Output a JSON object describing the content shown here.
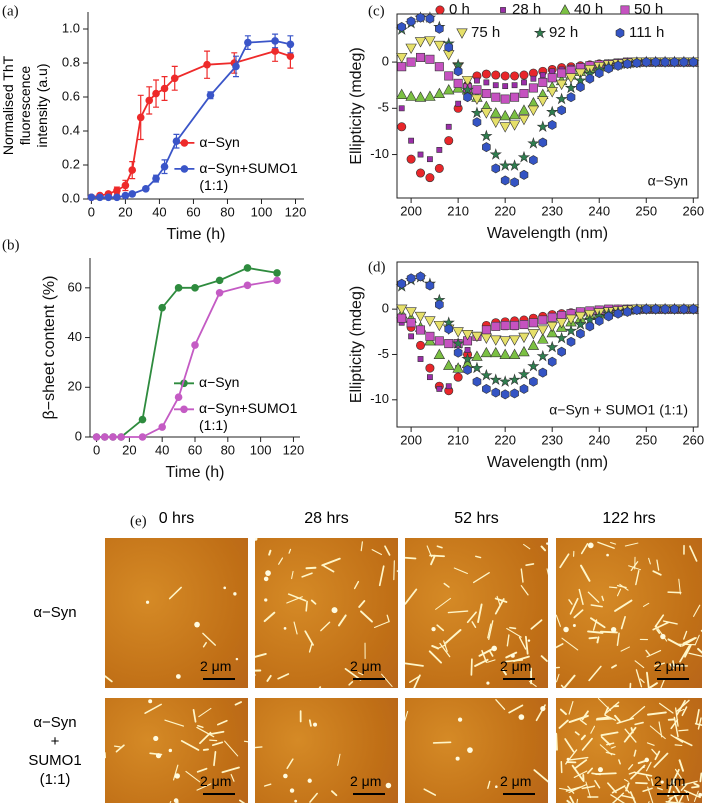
{
  "chart_data": [
    {
      "type": "line",
      "panel_label": "(a)",
      "xlabel": "Time (h)",
      "ylabel": "Normalised ThT\nfluorescence\nintensity (a.u)",
      "xlim": [
        -2,
        125
      ],
      "ylim": [
        0,
        1.1
      ],
      "xticks": [
        0,
        20,
        40,
        60,
        80,
        100,
        120
      ],
      "yticks": [
        {
          "value": 0,
          "label": "0.0"
        },
        0.2,
        0.4,
        0.6,
        0.8,
        {
          "value": 1,
          "label": "1.0"
        }
      ],
      "legend": "lower right",
      "series": [
        {
          "name": "α−Syn",
          "color": "#ee2a2a",
          "x": [
            0,
            5,
            10,
            15,
            20,
            24,
            29,
            34,
            38,
            43,
            49,
            68,
            84,
            108,
            117
          ],
          "values": [
            0.01,
            0.02,
            0.03,
            0.05,
            0.08,
            0.17,
            0.48,
            0.58,
            0.62,
            0.65,
            0.71,
            0.79,
            0.8,
            0.87,
            0.84
          ],
          "errors": [
            0.01,
            0.01,
            0.01,
            0.02,
            0.03,
            0.05,
            0.13,
            0.08,
            0.08,
            0.07,
            0.07,
            0.08,
            0.06,
            0.06,
            0.07
          ]
        },
        {
          "name": "α−Syn+SUMO1\n(1:1)",
          "color": "#3a55c8",
          "x": [
            0,
            5,
            10,
            15,
            20,
            24,
            32,
            38,
            43,
            50,
            70,
            85,
            92,
            108,
            117
          ],
          "values": [
            0.01,
            0.01,
            0.01,
            0.01,
            0.02,
            0.03,
            0.06,
            0.12,
            0.19,
            0.34,
            0.61,
            0.78,
            0.92,
            0.93,
            0.91
          ],
          "errors": [
            0.01,
            0.01,
            0.01,
            0.01,
            0.01,
            0.01,
            0.01,
            0.02,
            0.04,
            0.04,
            0.02,
            0.06,
            0.04,
            0.04,
            0.05
          ]
        }
      ]
    },
    {
      "type": "line",
      "panel_label": "(b)",
      "xlabel": "Time (h)",
      "ylabel": "β−sheet content (%)",
      "xlim": [
        -4,
        124
      ],
      "ylim": [
        0,
        72
      ],
      "xticks": [
        0,
        20,
        40,
        60,
        80,
        100,
        120
      ],
      "yticks": [
        0,
        20,
        40,
        60
      ],
      "legend": "lower right",
      "series": [
        {
          "name": "α−Syn",
          "color": "#2e8b3e",
          "x": [
            0,
            5,
            10,
            15,
            28,
            40,
            50,
            60,
            75,
            92,
            110
          ],
          "values": [
            0,
            0,
            0,
            0,
            7,
            52,
            60,
            60,
            63,
            68,
            66
          ]
        },
        {
          "name": "α−Syn+SUMO1\n(1:1)",
          "color": "#c45bc4",
          "x": [
            0,
            5,
            10,
            15,
            28,
            40,
            50,
            60,
            75,
            92,
            110
          ],
          "values": [
            0,
            0,
            0,
            0,
            0,
            4,
            16,
            37,
            58,
            61,
            63
          ]
        }
      ]
    },
    {
      "type": "scatter",
      "panel_label": "(c)",
      "xlabel": "Wavelength (nm)",
      "ylabel": "Ellipticity (mdeg)",
      "annotation": "α−Syn",
      "box": true,
      "legend": "top",
      "xlim": [
        197,
        261
      ],
      "ylim": [
        -14.7,
        5.2
      ],
      "xticks": [
        200,
        210,
        220,
        230,
        240,
        250,
        260
      ],
      "yticks": [
        -10,
        -5,
        0
      ],
      "x": [
        198,
        200,
        202,
        204,
        206,
        208,
        210,
        212,
        214,
        216,
        218,
        220,
        222,
        224,
        226,
        228,
        230,
        232,
        234,
        236,
        238,
        240,
        242,
        244,
        246,
        248,
        250,
        252,
        254,
        256,
        258,
        260
      ],
      "series": [
        {
          "name": "0 h",
          "color": "#e8262a",
          "marker": "circle",
          "values": [
            -7,
            -10.5,
            -12,
            -12.5,
            -11.5,
            -8.5,
            -5,
            -2.5,
            -1.5,
            -1.3,
            -1.4,
            -1.5,
            -1.5,
            -1.4,
            -1.2,
            -1,
            -0.8,
            -0.6,
            -0.5,
            -0.4,
            -0.3,
            -0.2,
            -0.2,
            -0.1,
            -0.1,
            0,
            0,
            0,
            0,
            0,
            0,
            0
          ]
        },
        {
          "name": "28 h",
          "color": "#9a2ea8",
          "marker": "small-square",
          "values": [
            -5,
            -8.5,
            -10,
            -10.5,
            -9.5,
            -7,
            -4.5,
            -2.5,
            -2,
            -2.2,
            -2.5,
            -2.6,
            -2.5,
            -2.2,
            -1.8,
            -1.4,
            -1,
            -0.8,
            -0.6,
            -0.4,
            -0.3,
            -0.2,
            -0.1,
            -0.1,
            0,
            0,
            0,
            0,
            0,
            0,
            0,
            0
          ]
        },
        {
          "name": "40 h",
          "color": "#7bc043",
          "marker": "triangle",
          "values": [
            -3.5,
            -3.7,
            -3.8,
            -3.7,
            -3.4,
            -3,
            -2.8,
            -3,
            -3.8,
            -4.8,
            -5.5,
            -5.8,
            -5.7,
            -5.2,
            -4.4,
            -3.5,
            -2.7,
            -2,
            -1.4,
            -1,
            -0.7,
            -0.5,
            -0.3,
            -0.2,
            -0.1,
            0,
            0,
            0,
            0,
            0,
            0,
            0
          ]
        },
        {
          "name": "50 h",
          "color": "#c552c0",
          "marker": "square",
          "values": [
            -0.5,
            0,
            0.5,
            0.3,
            -0.5,
            -1.5,
            -2.3,
            -2.8,
            -3,
            -3.4,
            -3.8,
            -4,
            -3.8,
            -3.4,
            -2.8,
            -2.2,
            -1.7,
            -1.2,
            -0.9,
            -0.6,
            -0.4,
            -0.3,
            -0.2,
            -0.1,
            0,
            0,
            0,
            0,
            0,
            0,
            0,
            0
          ]
        },
        {
          "name": "75 h",
          "color": "#e6e06a",
          "marker": "triangle-down",
          "values": [
            0.5,
            1.5,
            2.2,
            2.3,
            1.8,
            0.8,
            -0.5,
            -2,
            -4,
            -5.5,
            -6.5,
            -7,
            -6.8,
            -6.2,
            -5.2,
            -4.2,
            -3.2,
            -2.4,
            -1.7,
            -1.2,
            -0.8,
            -0.5,
            -0.3,
            -0.2,
            -0.1,
            0,
            0,
            0,
            0,
            0,
            0,
            0
          ]
        },
        {
          "name": "92 h",
          "color": "#2f7f4f",
          "marker": "star",
          "values": [
            3.5,
            4.2,
            4.8,
            4.8,
            3.8,
            2,
            -0.3,
            -3,
            -5.5,
            -8,
            -10,
            -11.2,
            -11.2,
            -10.3,
            -8.8,
            -7,
            -5.4,
            -4,
            -2.8,
            -2,
            -1.3,
            -0.8,
            -0.5,
            -0.3,
            -0.2,
            -0.1,
            0,
            0,
            0,
            0,
            0,
            0
          ]
        },
        {
          "name": "111 h",
          "color": "#3454c4",
          "marker": "hexagon",
          "values": [
            3.8,
            4.4,
            4.8,
            4.7,
            3.6,
            1.6,
            -1,
            -3.8,
            -6.5,
            -9.2,
            -11.5,
            -12.8,
            -13,
            -12.2,
            -10.6,
            -8.7,
            -6.8,
            -5.2,
            -3.8,
            -2.7,
            -1.8,
            -1.2,
            -0.7,
            -0.4,
            -0.2,
            -0.1,
            0,
            0,
            0,
            0,
            0,
            0
          ]
        }
      ]
    },
    {
      "type": "scatter",
      "panel_label": "(d)",
      "xlabel": "Wavelength (nm)",
      "ylabel": "Ellipticity (mdeg)",
      "annotation": "α−Syn + SUMO1 (1:1)",
      "box": true,
      "xlim": [
        197,
        261
      ],
      "ylim": [
        -13,
        5.2
      ],
      "xticks": [
        200,
        210,
        220,
        230,
        240,
        250,
        260
      ],
      "yticks": [
        -10,
        -5,
        0
      ],
      "x": [
        198,
        200,
        202,
        204,
        206,
        208,
        210,
        212,
        214,
        216,
        218,
        220,
        222,
        224,
        226,
        228,
        230,
        232,
        234,
        236,
        238,
        240,
        242,
        244,
        246,
        248,
        250,
        252,
        254,
        256,
        258,
        260
      ],
      "series": [
        {
          "color": "#e8262a",
          "marker": "circle",
          "values": [
            -1,
            -2,
            -4,
            -6.5,
            -8.5,
            -9,
            -7.5,
            -5,
            -3,
            -1.8,
            -1.5,
            -1.4,
            -1.3,
            -1.2,
            -1,
            -0.8,
            -0.6,
            -0.5,
            -0.4,
            -0.3,
            -0.2,
            -0.1,
            -0.1,
            0,
            0,
            0,
            0,
            0,
            0,
            0,
            0,
            0
          ]
        },
        {
          "color": "#9a2ea8",
          "marker": "small-square",
          "values": [
            -1.5,
            -3,
            -5.5,
            -7.5,
            -8.8,
            -8.5,
            -6.5,
            -4.5,
            -3,
            -2.2,
            -2,
            -2,
            -2,
            -1.8,
            -1.5,
            -1.2,
            -0.9,
            -0.7,
            -0.5,
            -0.3,
            -0.2,
            -0.1,
            -0.1,
            0,
            0,
            0,
            0,
            0,
            0,
            0,
            0,
            0
          ]
        },
        {
          "color": "#7bc043",
          "marker": "triangle",
          "values": [
            -0.5,
            -1,
            -2,
            -3.5,
            -5,
            -6.2,
            -6.5,
            -6,
            -5.2,
            -4.8,
            -4.8,
            -5,
            -5,
            -4.7,
            -4,
            -3.3,
            -2.6,
            -2,
            -1.4,
            -1,
            -0.7,
            -0.5,
            -0.3,
            -0.2,
            -0.1,
            0,
            0,
            0,
            0,
            0,
            0,
            0
          ]
        },
        {
          "color": "#c552c0",
          "marker": "square",
          "values": [
            -1,
            -1.5,
            -2.3,
            -3,
            -3.5,
            -3.8,
            -3.8,
            -3.5,
            -3,
            -2.3,
            -1.9,
            -1.8,
            -1.8,
            -1.7,
            -1.5,
            -1.2,
            -0.9,
            -0.7,
            -0.5,
            -0.3,
            -0.2,
            -0.1,
            0,
            0,
            0,
            0,
            0,
            0,
            0,
            0,
            0,
            0
          ]
        },
        {
          "color": "#e6e06a",
          "marker": "triangle-down",
          "values": [
            0,
            -0.3,
            -0.8,
            -1.3,
            -1.8,
            -2.2,
            -2.5,
            -2.8,
            -3,
            -3.2,
            -3.4,
            -3.5,
            -3.4,
            -3.1,
            -2.7,
            -2.3,
            -1.9,
            -1.5,
            -1.1,
            -0.8,
            -0.6,
            -0.4,
            -0.3,
            -0.2,
            -0.1,
            0,
            0,
            0,
            0,
            0,
            0,
            0
          ]
        },
        {
          "color": "#2f7f4f",
          "marker": "star",
          "values": [
            2.5,
            3.2,
            3.5,
            2.8,
            1,
            -1.5,
            -3.8,
            -5.5,
            -6.5,
            -7.3,
            -7.8,
            -8,
            -7.8,
            -7.2,
            -6.3,
            -5.2,
            -4.2,
            -3.2,
            -2.4,
            -1.7,
            -1.2,
            -0.8,
            -0.5,
            -0.3,
            -0.2,
            -0.1,
            0,
            0,
            0,
            0,
            0,
            0
          ]
        },
        {
          "color": "#3454c4",
          "marker": "hexagon",
          "values": [
            2.8,
            3.4,
            3.6,
            2.6,
            0.5,
            -2.2,
            -4.8,
            -6.7,
            -8,
            -8.8,
            -9.2,
            -9.4,
            -9.3,
            -8.8,
            -8,
            -7,
            -5.8,
            -4.7,
            -3.6,
            -2.7,
            -1.9,
            -1.3,
            -0.8,
            -0.5,
            -0.3,
            -0.1,
            0,
            0,
            0,
            0,
            0,
            0
          ]
        }
      ]
    }
  ],
  "afm": {
    "panel_label": "(e)",
    "columns": [
      "0 hrs",
      "28 hrs",
      "52 hrs",
      "122 hrs"
    ],
    "rows": [
      "α−Syn",
      "α−Syn\n+\nSUMO1\n(1:1)"
    ],
    "scale_bar": "2 μm"
  }
}
